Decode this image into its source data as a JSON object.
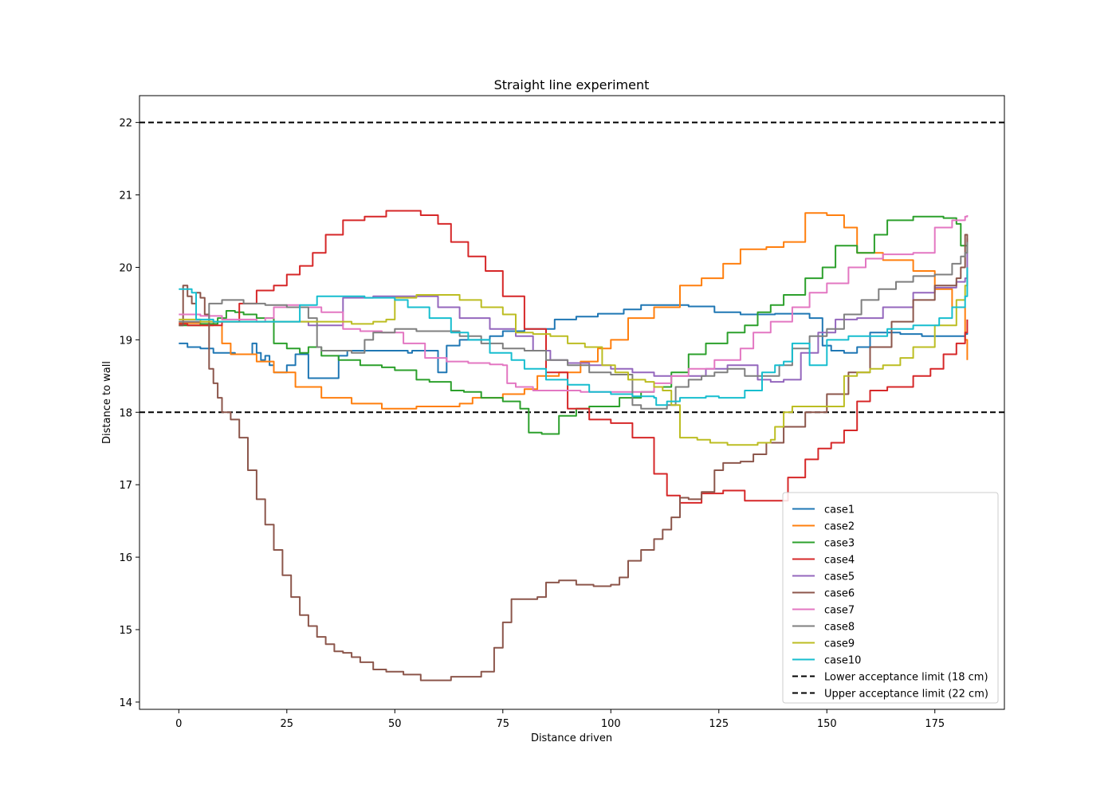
{
  "chart_data": {
    "type": "line",
    "title": "Straight line experiment",
    "xlabel": "Distance driven",
    "ylabel": "Distance to wall",
    "xlim": [
      -9.1,
      191.1
    ],
    "ylim": [
      13.9,
      22.37
    ],
    "xticks": [
      0,
      25,
      50,
      75,
      100,
      125,
      150,
      175
    ],
    "yticks": [
      14,
      15,
      16,
      17,
      18,
      19,
      20,
      21,
      22
    ],
    "grid": false,
    "legend_position": "lower-right",
    "series": [
      {
        "name": "case1",
        "color": "#1f77b4",
        "x": [
          0,
          2,
          5,
          8,
          13,
          16,
          17,
          18,
          19,
          20,
          21,
          22,
          25,
          27,
          28,
          30,
          36,
          37,
          39,
          45,
          52,
          53,
          54,
          60,
          61,
          62,
          65,
          68,
          72,
          75,
          80,
          83,
          87,
          92,
          97,
          103,
          107,
          118,
          124,
          130,
          138,
          146,
          149,
          151,
          154,
          157,
          160,
          167,
          172,
          177,
          182,
          182.5
        ],
        "y": [
          18.95,
          18.9,
          18.88,
          18.82,
          18.8,
          18.8,
          18.95,
          18.82,
          18.72,
          18.78,
          18.65,
          18.55,
          18.65,
          18.8,
          18.8,
          18.47,
          18.47,
          18.78,
          18.85,
          18.85,
          18.85,
          18.82,
          18.85,
          18.55,
          18.55,
          18.92,
          19.0,
          19.0,
          19.05,
          19.12,
          19.15,
          19.15,
          19.28,
          19.32,
          19.36,
          19.42,
          19.48,
          19.46,
          19.38,
          19.35,
          19.36,
          19.3,
          18.92,
          18.85,
          18.82,
          18.9,
          19.1,
          19.08,
          19.05,
          19.05,
          19.08,
          19.1
        ]
      },
      {
        "name": "case2",
        "color": "#ff7f0e",
        "x": [
          0,
          5,
          8,
          10,
          12,
          18,
          22,
          27,
          33,
          40,
          47,
          50,
          55,
          60,
          65,
          68,
          75,
          80,
          83,
          88,
          93,
          97,
          100,
          104,
          110,
          116,
          121,
          126,
          130,
          136,
          140,
          145,
          150,
          154,
          157,
          163,
          170,
          175,
          179,
          182,
          182.5
        ],
        "y": [
          19.23,
          19.2,
          19.25,
          18.95,
          18.8,
          18.7,
          18.55,
          18.35,
          18.2,
          18.12,
          18.05,
          18.05,
          18.08,
          18.08,
          18.12,
          18.2,
          18.25,
          18.32,
          18.5,
          18.55,
          18.7,
          18.88,
          19.0,
          19.3,
          19.45,
          19.75,
          19.85,
          20.05,
          20.25,
          20.28,
          20.35,
          20.75,
          20.72,
          20.55,
          20.2,
          20.1,
          19.95,
          19.7,
          19.45,
          19.0,
          18.72
        ]
      },
      {
        "name": "case3",
        "color": "#2ca02c",
        "x": [
          0,
          5,
          9,
          11,
          13,
          15,
          18,
          22,
          25,
          28,
          30,
          33,
          37,
          42,
          47,
          50,
          55,
          58,
          63,
          66,
          70,
          75,
          79,
          81,
          84,
          88,
          92,
          95,
          102,
          107,
          110,
          114,
          118,
          122,
          127,
          131,
          134,
          137,
          140,
          145,
          149,
          152,
          157,
          161,
          164,
          170,
          177,
          180,
          181,
          182.5
        ],
        "y": [
          19.2,
          19.22,
          19.3,
          19.4,
          19.38,
          19.35,
          19.3,
          18.95,
          18.88,
          18.82,
          18.9,
          18.78,
          18.72,
          18.65,
          18.62,
          18.58,
          18.45,
          18.42,
          18.3,
          18.28,
          18.2,
          18.15,
          18.05,
          17.72,
          17.7,
          17.95,
          18.05,
          18.08,
          18.2,
          18.28,
          18.35,
          18.55,
          18.8,
          18.95,
          19.1,
          19.2,
          19.38,
          19.48,
          19.62,
          19.85,
          20.0,
          20.3,
          20.2,
          20.45,
          20.65,
          20.7,
          20.68,
          20.6,
          20.3,
          20.2
        ]
      },
      {
        "name": "case4",
        "color": "#d62728",
        "x": [
          0,
          2,
          5,
          10,
          14,
          18,
          22,
          25,
          28,
          31,
          34,
          38,
          43,
          48,
          51,
          56,
          60,
          63,
          67,
          71,
          75,
          80,
          85,
          90,
          95,
          100,
          105,
          110,
          113,
          116,
          121,
          126,
          131,
          137,
          141,
          145,
          148,
          151,
          154,
          157,
          160,
          164,
          170,
          174,
          177,
          180,
          182,
          182.5
        ],
        "y": [
          19.22,
          19.2,
          19.2,
          19.25,
          19.5,
          19.68,
          19.75,
          19.9,
          20.02,
          20.2,
          20.45,
          20.65,
          20.7,
          20.78,
          20.78,
          20.72,
          20.6,
          20.35,
          20.15,
          19.95,
          19.6,
          19.15,
          18.55,
          18.05,
          17.9,
          17.85,
          17.65,
          17.15,
          16.85,
          16.75,
          16.88,
          16.92,
          16.78,
          16.78,
          17.1,
          17.35,
          17.5,
          17.58,
          17.75,
          18.15,
          18.3,
          18.35,
          18.5,
          18.6,
          18.8,
          18.95,
          19.1,
          19.28
        ]
      },
      {
        "name": "case5",
        "color": "#9467bd",
        "x": [
          0,
          5,
          10,
          20,
          30,
          37,
          38,
          45,
          53,
          60,
          65,
          72,
          78,
          82,
          86,
          90,
          95,
          100,
          105,
          110,
          116,
          122,
          127,
          130,
          134,
          137,
          140,
          144,
          148,
          152,
          157,
          163,
          170,
          175,
          180,
          182,
          182.5
        ],
        "y": [
          19.25,
          19.25,
          19.25,
          19.25,
          19.2,
          19.2,
          19.58,
          19.6,
          19.6,
          19.45,
          19.3,
          19.15,
          19.05,
          18.85,
          18.72,
          18.68,
          18.65,
          18.6,
          18.55,
          18.5,
          18.5,
          18.6,
          18.65,
          18.65,
          18.45,
          18.42,
          18.45,
          18.82,
          19.1,
          19.28,
          19.3,
          19.45,
          19.65,
          19.72,
          19.8,
          19.85,
          20.4
        ]
      },
      {
        "name": "case6",
        "color": "#8c564b",
        "x": [
          0,
          1,
          2,
          3,
          4,
          5,
          6,
          7,
          8,
          9,
          10,
          12,
          14,
          16,
          18,
          20,
          22,
          24,
          26,
          28,
          30,
          32,
          34,
          36,
          38,
          40,
          42,
          45,
          48,
          52,
          56,
          60,
          63,
          66,
          70,
          73,
          75,
          77,
          80,
          83,
          85,
          88,
          92,
          96,
          100,
          102,
          104,
          107,
          110,
          112,
          114,
          116,
          118,
          121,
          124,
          126,
          130,
          133,
          136,
          140,
          145,
          150,
          155,
          160,
          165,
          170,
          175,
          180,
          181,
          182,
          182.5
        ],
        "y": [
          19.2,
          19.75,
          19.6,
          19.5,
          19.65,
          19.58,
          19.35,
          18.6,
          18.4,
          18.2,
          18.0,
          17.9,
          17.65,
          17.2,
          16.8,
          16.45,
          16.1,
          15.75,
          15.45,
          15.2,
          15.05,
          14.9,
          14.8,
          14.7,
          14.68,
          14.62,
          14.55,
          14.45,
          14.42,
          14.38,
          14.3,
          14.3,
          14.35,
          14.35,
          14.42,
          14.75,
          15.1,
          15.42,
          15.42,
          15.45,
          15.65,
          15.68,
          15.62,
          15.6,
          15.62,
          15.72,
          15.95,
          16.1,
          16.25,
          16.38,
          16.55,
          16.82,
          16.8,
          16.9,
          17.2,
          17.3,
          17.32,
          17.42,
          17.58,
          17.8,
          18.0,
          18.25,
          18.55,
          18.9,
          19.25,
          19.55,
          19.75,
          19.85,
          20.0,
          20.45,
          20.3
        ]
      },
      {
        "name": "case7",
        "color": "#e377c2",
        "x": [
          0,
          5,
          10,
          18,
          20,
          22,
          25,
          28,
          33,
          38,
          42,
          47,
          52,
          57,
          62,
          67,
          72,
          75,
          76,
          78,
          82,
          88,
          93,
          100,
          105,
          110,
          114,
          118,
          124,
          130,
          133,
          137,
          142,
          146,
          150,
          155,
          159,
          163,
          170,
          175,
          179,
          182,
          182.5
        ],
        "y": [
          19.35,
          19.33,
          19.28,
          19.25,
          19.3,
          19.45,
          19.48,
          19.45,
          19.38,
          19.15,
          19.12,
          19.1,
          18.95,
          18.75,
          18.7,
          18.68,
          18.66,
          18.65,
          18.4,
          18.35,
          18.3,
          18.3,
          18.28,
          18.28,
          18.28,
          18.4,
          18.5,
          18.6,
          18.72,
          18.88,
          19.1,
          19.25,
          19.45,
          19.65,
          19.78,
          20.0,
          20.12,
          20.18,
          20.2,
          20.55,
          20.65,
          20.7,
          20.72
        ]
      },
      {
        "name": "case8",
        "color": "#7f7f7f",
        "x": [
          0,
          5,
          7,
          10,
          15,
          20,
          25,
          30,
          32,
          33,
          35,
          40,
          43,
          45,
          50,
          55,
          60,
          65,
          70,
          75,
          80,
          85,
          90,
          95,
          100,
          103,
          105,
          107,
          110,
          113,
          115,
          118,
          121,
          124,
          127,
          131,
          136,
          139,
          142,
          146,
          150,
          154,
          158,
          162,
          166,
          170,
          175,
          179,
          181,
          182,
          182.5
        ],
        "y": [
          19.25,
          19.25,
          19.5,
          19.55,
          19.5,
          19.48,
          19.45,
          19.3,
          18.9,
          18.85,
          18.85,
          18.82,
          19.0,
          19.1,
          19.15,
          19.12,
          19.12,
          19.05,
          18.95,
          18.88,
          18.85,
          18.72,
          18.65,
          18.55,
          18.52,
          18.52,
          18.1,
          18.05,
          18.05,
          18.1,
          18.35,
          18.45,
          18.5,
          18.55,
          18.6,
          18.5,
          18.5,
          18.65,
          18.88,
          19.05,
          19.15,
          19.35,
          19.55,
          19.7,
          19.8,
          19.88,
          19.9,
          20.05,
          20.15,
          20.2,
          20.35
        ]
      },
      {
        "name": "case9",
        "color": "#bcbd22",
        "x": [
          0,
          5,
          10,
          20,
          30,
          38,
          40,
          45,
          48,
          50,
          55,
          60,
          65,
          70,
          75,
          78,
          82,
          86,
          90,
          94,
          98,
          101,
          104,
          108,
          110,
          112,
          114,
          116,
          120,
          123,
          127,
          131,
          134,
          137,
          138,
          140,
          142,
          145,
          150,
          153,
          154,
          157,
          160,
          163,
          167,
          170,
          175,
          180,
          182,
          182.5
        ],
        "y": [
          19.28,
          19.25,
          19.25,
          19.25,
          19.25,
          19.25,
          19.22,
          19.25,
          19.28,
          19.58,
          19.62,
          19.62,
          19.55,
          19.45,
          19.35,
          19.1,
          19.08,
          19.05,
          18.95,
          18.9,
          18.65,
          18.55,
          18.45,
          18.42,
          18.35,
          18.3,
          18.1,
          17.65,
          17.62,
          17.58,
          17.55,
          17.55,
          17.58,
          17.62,
          17.8,
          18.0,
          18.08,
          18.08,
          18.08,
          18.08,
          18.5,
          18.55,
          18.6,
          18.65,
          18.75,
          18.9,
          19.2,
          19.55,
          19.75,
          19.9
        ]
      },
      {
        "name": "case10",
        "color": "#17becf",
        "x": [
          0,
          2,
          3,
          4,
          8,
          12,
          18,
          22,
          27,
          28,
          32,
          37,
          43,
          50,
          53,
          58,
          63,
          67,
          72,
          77,
          80,
          85,
          90,
          95,
          100,
          105,
          110,
          110.5,
          113,
          116,
          122,
          125,
          128,
          131,
          135,
          138,
          140,
          142,
          146,
          150,
          155,
          160,
          164,
          170,
          176,
          179,
          182,
          182.5
        ],
        "y": [
          19.7,
          19.7,
          19.65,
          19.28,
          19.25,
          19.25,
          19.25,
          19.25,
          19.25,
          19.48,
          19.6,
          19.6,
          19.58,
          19.55,
          19.45,
          19.3,
          19.1,
          19.0,
          18.82,
          18.72,
          18.6,
          18.45,
          18.38,
          18.28,
          18.25,
          18.22,
          18.2,
          18.1,
          18.15,
          18.2,
          18.22,
          18.2,
          18.2,
          18.3,
          18.55,
          18.65,
          18.7,
          18.95,
          18.65,
          19.0,
          19.05,
          19.05,
          19.15,
          19.2,
          19.3,
          19.45,
          19.6,
          20.0
        ]
      }
    ],
    "reference_lines": [
      {
        "name": "Lower acceptance limit (18 cm)",
        "y": 18,
        "color": "#000000",
        "style": "dashed"
      },
      {
        "name": "Upper acceptance limit (22 cm)",
        "y": 22,
        "color": "#000000",
        "style": "dashed"
      }
    ]
  }
}
